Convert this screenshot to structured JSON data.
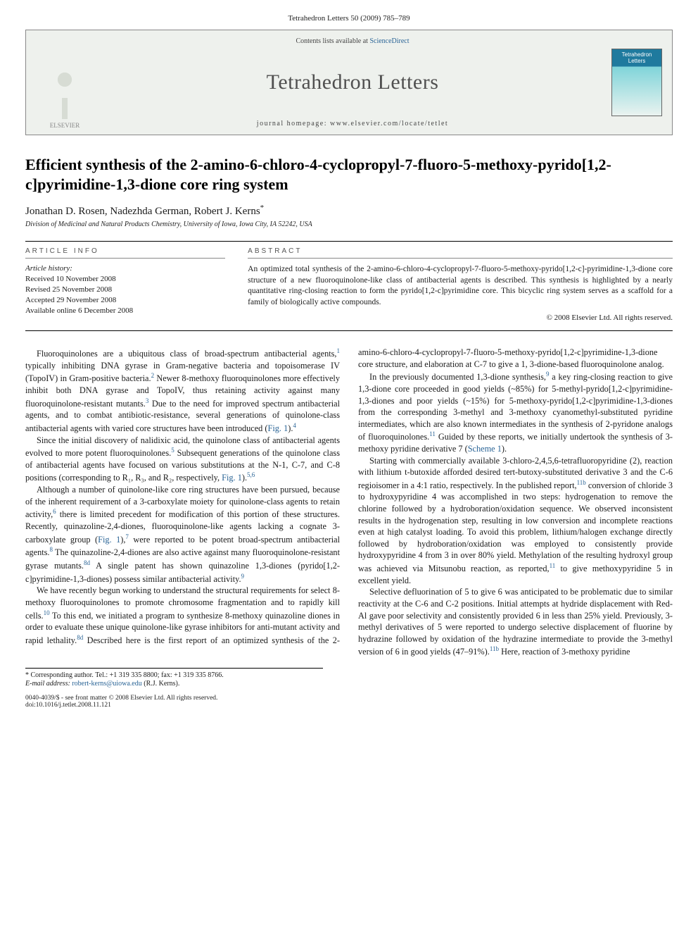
{
  "page_header": "Tetrahedron Letters 50 (2009) 785–789",
  "banner": {
    "contents_prefix": "Contents lists available at ",
    "contents_link": "ScienceDirect",
    "journal_title": "Tetrahedron Letters",
    "homepage_prefix": "journal homepage: ",
    "homepage_url": "www.elsevier.com/locate/tetlet",
    "publisher_name": "ELSEVIER",
    "cover_label": "Tetrahedron Letters"
  },
  "article": {
    "title": "Efficient synthesis of the 2-amino-6-chloro-4-cyclopropyl-7-fluoro-5-methoxy-pyrido[1,2-c]pyrimidine-1,3-dione core ring system",
    "authors": "Jonathan D. Rosen, Nadezhda German, Robert J. Kerns",
    "corr_mark": "*",
    "affiliation": "Division of Medicinal and Natural Products Chemistry, University of Iowa, Iowa City, IA 52242, USA"
  },
  "info": {
    "head": "ARTICLE INFO",
    "history_label": "Article history:",
    "received": "Received 10 November 2008",
    "revised": "Revised 25 November 2008",
    "accepted": "Accepted 29 November 2008",
    "online": "Available online 6 December 2008"
  },
  "abstract": {
    "head": "ABSTRACT",
    "text": "An optimized total synthesis of the 2-amino-6-chloro-4-cyclopropyl-7-fluoro-5-methoxy-pyrido[1,2-c]-pyrimidine-1,3-dione core structure of a new fluoroquinolone-like class of antibacterial agents is described. This synthesis is highlighted by a nearly quantitative ring-closing reaction to form the pyrido[1,2-c]pyrimidine core. This bicyclic ring system serves as a scaffold for a family of biologically active compounds.",
    "copyright": "© 2008 Elsevier Ltd. All rights reserved."
  },
  "body": {
    "p1a": "Fluoroquinolones are a ubiquitous class of broad-spectrum antibacterial agents,",
    "p1b": " typically inhibiting DNA gyrase in Gram-negative bacteria and topoisomerase IV (TopoIV) in Gram-positive bacteria.",
    "p1c": " Newer 8-methoxy fluoroquinolones more effectively inhibit both DNA gyrase and TopoIV, thus retaining activity against many fluoroquinolone-resistant mutants.",
    "p1d": " Due to the need for improved spectrum antibacterial agents, and to combat antibiotic-resistance, several generations of quinolone-class antibacterial agents with varied core structures have been introduced (",
    "fig1": "Fig. 1",
    "p1e": ").",
    "p2a": "Since the initial discovery of nalidixic acid, the quinolone class of antibacterial agents evolved to more potent fluoroquinolones.",
    "p2b": " Subsequent generations of the quinolone class of antibacterial agents have focused on various substitutions at the N-1, C-7, and C-8 positions (corresponding to R₁, R₃, and R₂, respectively, ",
    "p2c": ").",
    "p3a": "Although a number of quinolone-like core ring structures have been pursued, because of the inherent requirement of a 3-carboxylate moiety for quinolone-class agents to retain activity,",
    "p3b": " there is limited precedent for modification of this portion of these structures. Recently, quinazoline-2,4-diones, fluoroquinolone-like agents lacking a cognate 3-carboxylate group (",
    "p3c": "),",
    "p3d": " were reported to be potent broad-spectrum antibacterial agents.",
    "p3e": " The quinazoline-2,4-diones are also active against many fluoroquinolone-resistant gyrase mutants.",
    "p3f": " A single patent has shown quinazoline 1,3-diones (pyrido[1,2-c]pyrimidine-1,3-diones) possess similar antibacterial activity.",
    "p4a": "We have recently begun working to understand the structural requirements for select 8-methoxy fluoroquinolones to promote chromosome fragmentation and to rapidly kill cells.",
    "p4b": " To this end, we initiated a program to synthesize 8-methoxy quinazoline diones in order to evaluate these unique quinolone-like gyrase inhibitors for anti-mutant activity and rapid lethality.",
    "p4c": " Described here is the first report of an optimized synthesis of the 2-amino-6-chloro-4-cyclopropyl-7-fluoro-5-methoxy-pyrido[1,2-c]pyrimidine-1,3-dione core structure, and elaboration at C-7 to give a 1, 3-dione-based fluoroquinolone analog.",
    "p5a": "In the previously documented 1,3-dione synthesis,",
    "p5b": " a key ring-closing reaction to give 1,3-dione core proceeded in good yields (~85%) for 5-methyl-pyrido[1,2-c]pyrimidine-1,3-diones and poor yields (~15%) for 5-methoxy-pyrido[1,2-c]pyrimidine-1,3-diones from the corresponding 3-methyl and 3-methoxy cyanomethyl-substituted pyridine intermediates, which are also known intermediates in the synthesis of 2-pyridone analogs of fluoroquinolones.",
    "p5c": " Guided by these reports, we initially undertook the synthesis of 3-methoxy pyridine derivative 7 (",
    "scheme1": "Scheme 1",
    "p5d": ").",
    "p6a": "Starting with commercially available 3-chloro-2,4,5,6-tetrafluoropyridine (2), reaction with lithium t-butoxide afforded desired tert-butoxy-substituted derivative 3 and the C-6 regioisomer in a 4:1 ratio, respectively. In the published report,",
    "p6b": " conversion of chloride 3 to hydroxypyridine 4 was accomplished in two steps: hydrogenation to remove the chlorine followed by a hydroboration/oxidation sequence. We observed inconsistent results in the hydrogenation step, resulting in low conversion and incomplete reactions even at high catalyst loading. To avoid this problem, lithium/halogen exchange directly followed by hydroboration/oxidation was employed to consistently provide hydroxypyridine 4 from 3 in over 80% yield. Methylation of the resulting hydroxyl group was achieved via Mitsunobu reaction, as reported,",
    "p6c": " to give methoxypyridine 5 in excellent yield.",
    "p7a": "Selective defluorination of 5 to give 6 was anticipated to be problematic due to similar reactivity at the C-6 and C-2 positions. Initial attempts at hydride displacement with Red-Al gave poor selectivity and consistently provided 6 in less than 25% yield. Previously, 3-methyl derivatives of 5 were reported to undergo selective displacement of fluorine by hydrazine followed by oxidation of the hydrazine intermediate to provide the 3-methyl version of 6 in good yields (47–91%).",
    "p7b": " Here, reaction of 3-methoxy pyridine"
  },
  "refs": {
    "r1": "1",
    "r2": "2",
    "r3": "3",
    "r4": "4",
    "r5": "5",
    "r56": "5,6",
    "r6": "6",
    "r7": "7",
    "r8": "8",
    "r8d": "8d",
    "r9": "9",
    "r10": "10",
    "r11": "11",
    "r11b": "11b"
  },
  "footnotes": {
    "corresponding": "* Corresponding author. Tel.: +1 319 335 8800; fax: +1 319 335 8766.",
    "email_label": "E-mail address:",
    "email": "robert-kerns@uiowa.edu",
    "email_who": " (R.J. Kerns)."
  },
  "footer": {
    "line1": "0040-4039/$ - see front matter © 2008 Elsevier Ltd. All rights reserved.",
    "line2": "doi:10.1016/j.tetlet.2008.11.121"
  }
}
